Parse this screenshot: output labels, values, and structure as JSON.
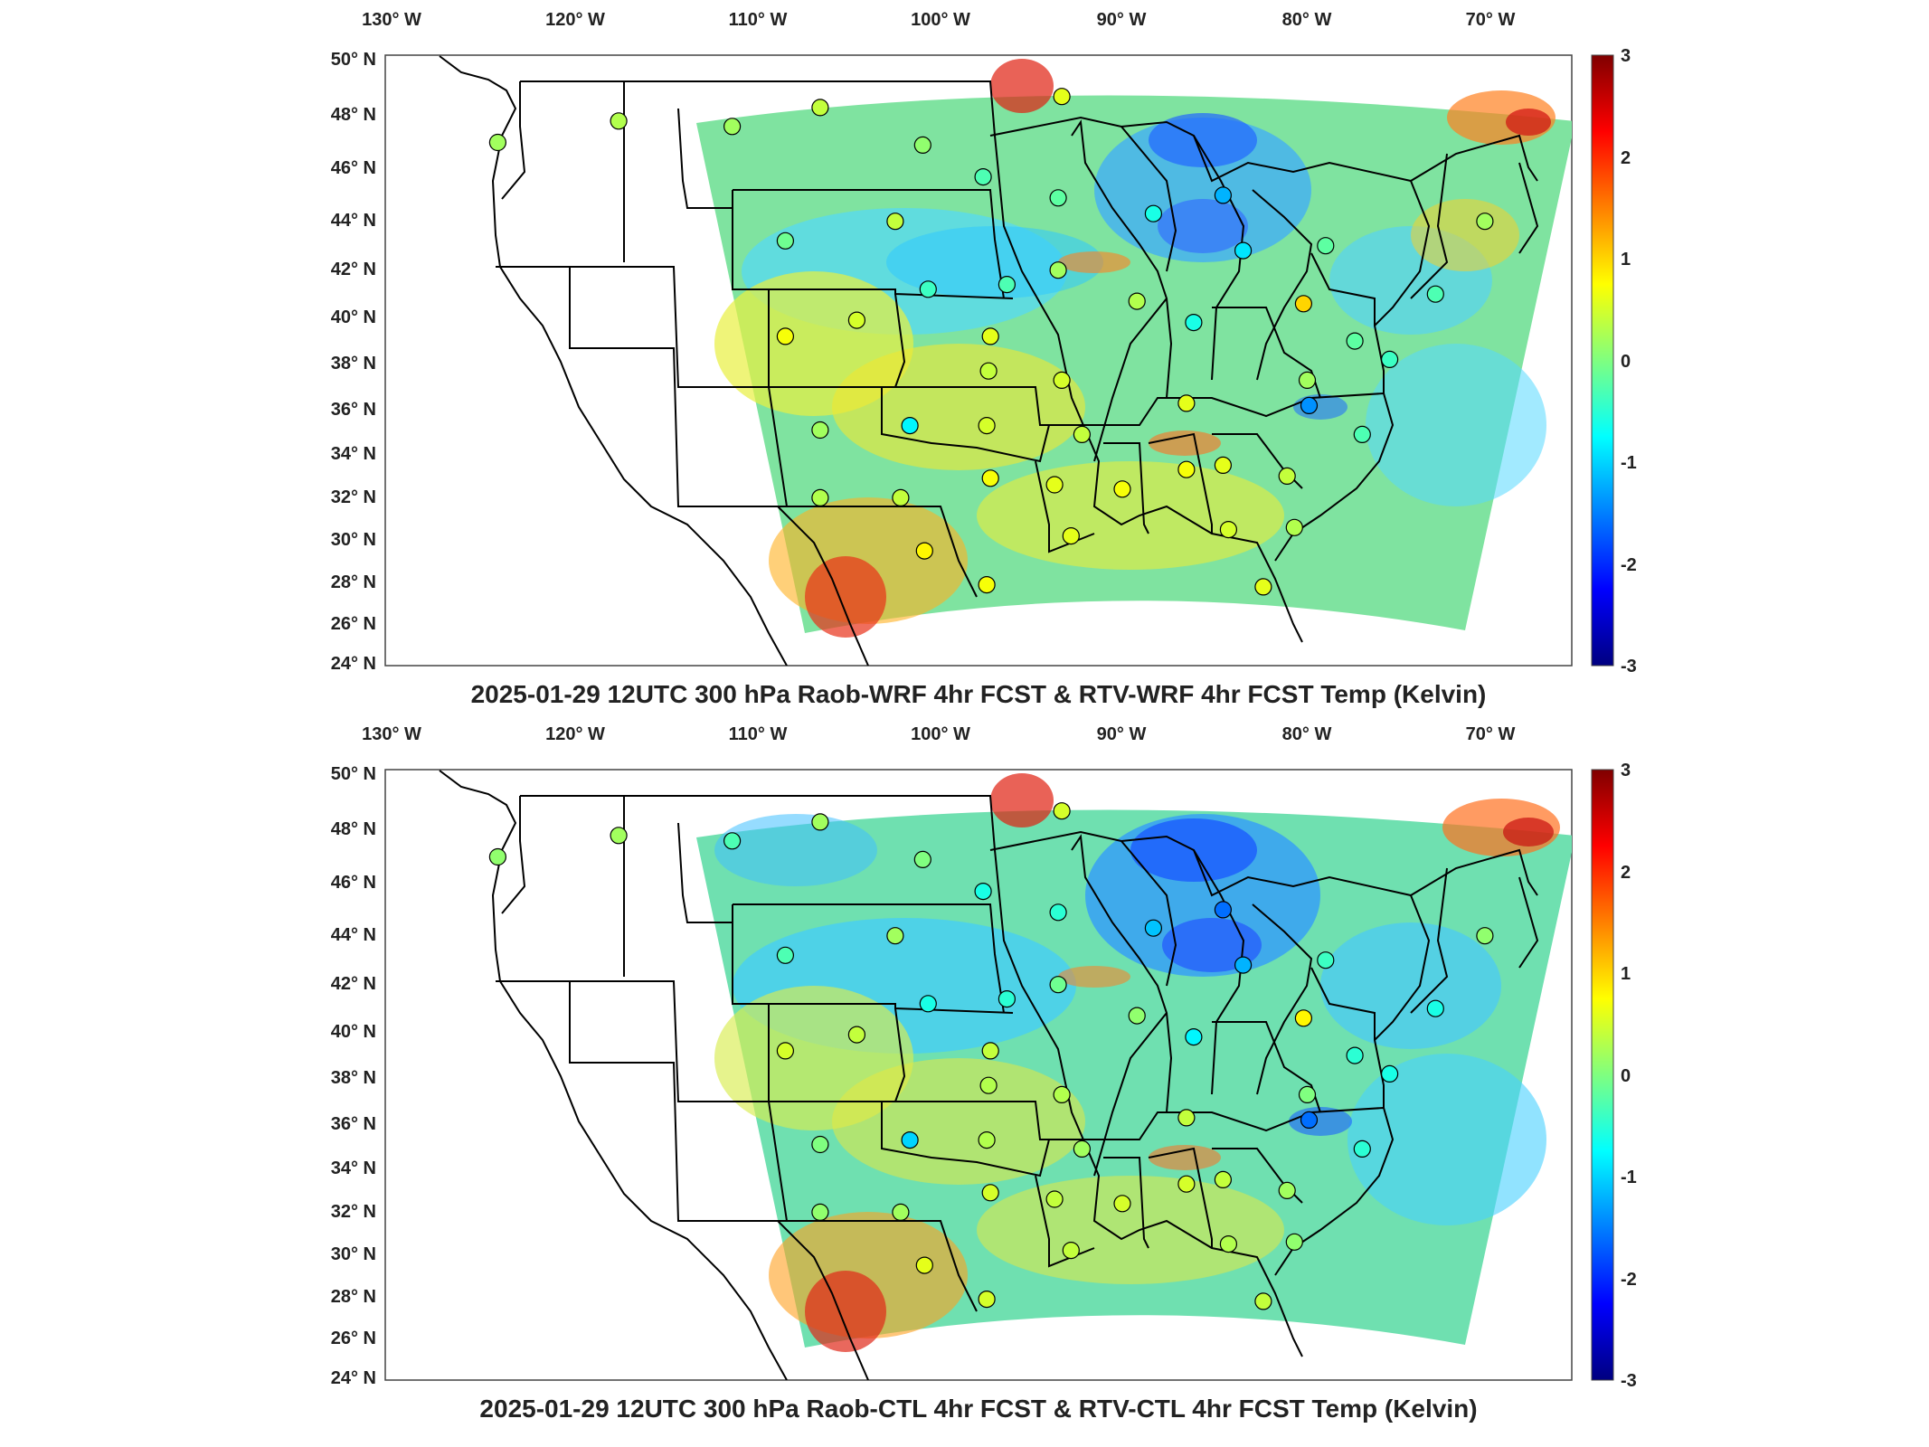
{
  "map_panels": [
    {
      "title": "2025-01-29 12UTC 300 hPa Raob-WRF 4hr FCST & RTV-WRF 4hr FCST Temp (Kelvin)",
      "lon_labels": [
        "130° W",
        "120° W",
        "110° W",
        "100° W",
        "90° W",
        "80° W",
        "70° W"
      ],
      "lat_labels": [
        "50° N",
        "48° N",
        "46° N",
        "44° N",
        "42° N",
        "40° N",
        "38° N",
        "36° N",
        "34° N",
        "32° N",
        "30° N",
        "28° N",
        "26° N",
        "24° N"
      ],
      "colorbar": {
        "ticks": [
          "3",
          "2",
          "1",
          "0",
          "-1",
          "-2",
          "-3"
        ],
        "min": -3,
        "max": 3,
        "colormap": "jet"
      },
      "raob_stations": [
        {
          "lon": -124.2,
          "lat": 46.9,
          "diff": 0.2
        },
        {
          "lon": -117.6,
          "lat": 47.7,
          "diff": 0.3
        },
        {
          "lon": -111.4,
          "lat": 47.5,
          "diff": 0.2
        },
        {
          "lon": -106.6,
          "lat": 48.2,
          "diff": 0.4
        },
        {
          "lon": -101.0,
          "lat": 46.8,
          "diff": 0.1
        },
        {
          "lon": -97.7,
          "lat": 45.6,
          "diff": -0.3
        },
        {
          "lon": -93.6,
          "lat": 44.8,
          "diff": -0.2
        },
        {
          "lon": -93.4,
          "lat": 48.6,
          "diff": 0.6
        },
        {
          "lon": -88.4,
          "lat": 44.2,
          "diff": -0.6
        },
        {
          "lon": -84.6,
          "lat": 44.9,
          "diff": -1.2
        },
        {
          "lon": -83.5,
          "lat": 42.7,
          "diff": -0.9
        },
        {
          "lon": -79.0,
          "lat": 42.9,
          "diff": -0.2
        },
        {
          "lon": -70.3,
          "lat": 43.9,
          "diff": 0.2
        },
        {
          "lon": -108.5,
          "lat": 43.1,
          "diff": -0.1
        },
        {
          "lon": -102.5,
          "lat": 43.9,
          "diff": 0.4
        },
        {
          "lon": -100.7,
          "lat": 41.1,
          "diff": -0.4
        },
        {
          "lon": -96.4,
          "lat": 41.3,
          "diff": -0.3
        },
        {
          "lon": -93.6,
          "lat": 41.9,
          "diff": 0.2
        },
        {
          "lon": -89.3,
          "lat": 40.6,
          "diff": 0.3
        },
        {
          "lon": -86.2,
          "lat": 39.7,
          "diff": -0.6
        },
        {
          "lon": -80.2,
          "lat": 40.5,
          "diff": 1.0
        },
        {
          "lon": -77.4,
          "lat": 38.9,
          "diff": -0.2
        },
        {
          "lon": -73.0,
          "lat": 40.9,
          "diff": -0.3
        },
        {
          "lon": -108.5,
          "lat": 39.1,
          "diff": 0.7
        },
        {
          "lon": -104.6,
          "lat": 39.8,
          "diff": 0.5
        },
        {
          "lon": -97.3,
          "lat": 39.1,
          "diff": 0.6
        },
        {
          "lon": -97.4,
          "lat": 37.6,
          "diff": 0.4
        },
        {
          "lon": -93.4,
          "lat": 37.2,
          "diff": 0.5
        },
        {
          "lon": -86.6,
          "lat": 36.2,
          "diff": 0.6
        },
        {
          "lon": -80.0,
          "lat": 37.2,
          "diff": 0.2
        },
        {
          "lon": -79.9,
          "lat": 36.1,
          "diff": -1.4
        },
        {
          "lon": -75.5,
          "lat": 38.1,
          "diff": -0.4
        },
        {
          "lon": -106.6,
          "lat": 35.0,
          "diff": 0.2
        },
        {
          "lon": -101.7,
          "lat": 35.2,
          "diff": -0.8
        },
        {
          "lon": -97.5,
          "lat": 35.2,
          "diff": 0.5
        },
        {
          "lon": -92.3,
          "lat": 34.8,
          "diff": 0.4
        },
        {
          "lon": -86.6,
          "lat": 33.2,
          "diff": 0.7
        },
        {
          "lon": -84.6,
          "lat": 33.4,
          "diff": 0.6
        },
        {
          "lon": -81.1,
          "lat": 32.9,
          "diff": 0.4
        },
        {
          "lon": -77.0,
          "lat": 34.8,
          "diff": -0.3
        },
        {
          "lon": -106.6,
          "lat": 31.9,
          "diff": 0.3
        },
        {
          "lon": -102.2,
          "lat": 31.9,
          "diff": 0.4
        },
        {
          "lon": -97.3,
          "lat": 32.8,
          "diff": 0.7
        },
        {
          "lon": -93.8,
          "lat": 32.5,
          "diff": 0.6
        },
        {
          "lon": -90.1,
          "lat": 32.3,
          "diff": 0.7
        },
        {
          "lon": -100.9,
          "lat": 29.4,
          "diff": 0.8
        },
        {
          "lon": -97.5,
          "lat": 27.8,
          "diff": 0.7
        },
        {
          "lon": -92.9,
          "lat": 30.1,
          "diff": 0.6
        },
        {
          "lon": -84.3,
          "lat": 30.4,
          "diff": 0.5
        },
        {
          "lon": -80.7,
          "lat": 30.5,
          "diff": 0.3
        },
        {
          "lon": -82.4,
          "lat": 27.7,
          "diff": 0.6
        }
      ]
    },
    {
      "title": "2025-01-29 12UTC 300 hPa Raob-CTL 4hr FCST & RTV-CTL 4hr FCST Temp (Kelvin)",
      "lon_labels": [
        "130° W",
        "120° W",
        "110° W",
        "100° W",
        "90° W",
        "80° W",
        "70° W"
      ],
      "lat_labels": [
        "50° N",
        "48° N",
        "46° N",
        "44° N",
        "42° N",
        "40° N",
        "38° N",
        "36° N",
        "34° N",
        "32° N",
        "30° N",
        "28° N",
        "26° N",
        "24° N"
      ],
      "colorbar": {
        "ticks": [
          "3",
          "2",
          "1",
          "0",
          "-1",
          "-2",
          "-3"
        ],
        "min": -3,
        "max": 3,
        "colormap": "jet"
      },
      "raob_stations": [
        {
          "lon": -124.2,
          "lat": 46.9,
          "diff": 0.1
        },
        {
          "lon": -117.6,
          "lat": 47.7,
          "diff": 0.2
        },
        {
          "lon": -111.4,
          "lat": 47.5,
          "diff": -0.3
        },
        {
          "lon": -106.6,
          "lat": 48.2,
          "diff": 0.2
        },
        {
          "lon": -101.0,
          "lat": 46.8,
          "diff": 0.0
        },
        {
          "lon": -97.7,
          "lat": 45.6,
          "diff": -0.6
        },
        {
          "lon": -93.6,
          "lat": 44.8,
          "diff": -0.5
        },
        {
          "lon": -93.4,
          "lat": 48.6,
          "diff": 0.5
        },
        {
          "lon": -88.4,
          "lat": 44.2,
          "diff": -1.1
        },
        {
          "lon": -84.6,
          "lat": 44.9,
          "diff": -1.6
        },
        {
          "lon": -83.5,
          "lat": 42.7,
          "diff": -1.2
        },
        {
          "lon": -79.0,
          "lat": 42.9,
          "diff": -0.4
        },
        {
          "lon": -70.3,
          "lat": 43.9,
          "diff": 0.1
        },
        {
          "lon": -108.5,
          "lat": 43.1,
          "diff": -0.3
        },
        {
          "lon": -102.5,
          "lat": 43.9,
          "diff": 0.2
        },
        {
          "lon": -100.7,
          "lat": 41.1,
          "diff": -0.6
        },
        {
          "lon": -96.4,
          "lat": 41.3,
          "diff": -0.5
        },
        {
          "lon": -93.6,
          "lat": 41.9,
          "diff": -0.1
        },
        {
          "lon": -89.3,
          "lat": 40.6,
          "diff": 0.1
        },
        {
          "lon": -86.2,
          "lat": 39.7,
          "diff": -0.8
        },
        {
          "lon": -80.2,
          "lat": 40.5,
          "diff": 0.8
        },
        {
          "lon": -77.4,
          "lat": 38.9,
          "diff": -0.5
        },
        {
          "lon": -73.0,
          "lat": 40.9,
          "diff": -0.6
        },
        {
          "lon": -108.5,
          "lat": 39.1,
          "diff": 0.5
        },
        {
          "lon": -104.6,
          "lat": 39.8,
          "diff": 0.4
        },
        {
          "lon": -97.3,
          "lat": 39.1,
          "diff": 0.4
        },
        {
          "lon": -97.4,
          "lat": 37.6,
          "diff": 0.3
        },
        {
          "lon": -93.4,
          "lat": 37.2,
          "diff": 0.3
        },
        {
          "lon": -86.6,
          "lat": 36.2,
          "diff": 0.4
        },
        {
          "lon": -80.0,
          "lat": 37.2,
          "diff": 0.0
        },
        {
          "lon": -79.9,
          "lat": 36.1,
          "diff": -1.6
        },
        {
          "lon": -75.5,
          "lat": 38.1,
          "diff": -0.6
        },
        {
          "lon": -106.6,
          "lat": 35.0,
          "diff": 0.0
        },
        {
          "lon": -101.7,
          "lat": 35.2,
          "diff": -1.0
        },
        {
          "lon": -97.5,
          "lat": 35.2,
          "diff": 0.3
        },
        {
          "lon": -92.3,
          "lat": 34.8,
          "diff": 0.2
        },
        {
          "lon": -86.6,
          "lat": 33.2,
          "diff": 0.5
        },
        {
          "lon": -84.6,
          "lat": 33.4,
          "diff": 0.4
        },
        {
          "lon": -81.1,
          "lat": 32.9,
          "diff": 0.2
        },
        {
          "lon": -77.0,
          "lat": 34.8,
          "diff": -0.5
        },
        {
          "lon": -106.6,
          "lat": 31.9,
          "diff": 0.1
        },
        {
          "lon": -102.2,
          "lat": 31.9,
          "diff": 0.2
        },
        {
          "lon": -97.3,
          "lat": 32.8,
          "diff": 0.5
        },
        {
          "lon": -93.8,
          "lat": 32.5,
          "diff": 0.4
        },
        {
          "lon": -90.1,
          "lat": 32.3,
          "diff": 0.5
        },
        {
          "lon": -100.9,
          "lat": 29.4,
          "diff": 0.6
        },
        {
          "lon": -97.5,
          "lat": 27.8,
          "diff": 0.5
        },
        {
          "lon": -92.9,
          "lat": 30.1,
          "diff": 0.4
        },
        {
          "lon": -84.3,
          "lat": 30.4,
          "diff": 0.3
        },
        {
          "lon": -80.7,
          "lat": 30.5,
          "diff": 0.1
        },
        {
          "lon": -82.4,
          "lat": 27.7,
          "diff": 0.4
        }
      ]
    }
  ]
}
